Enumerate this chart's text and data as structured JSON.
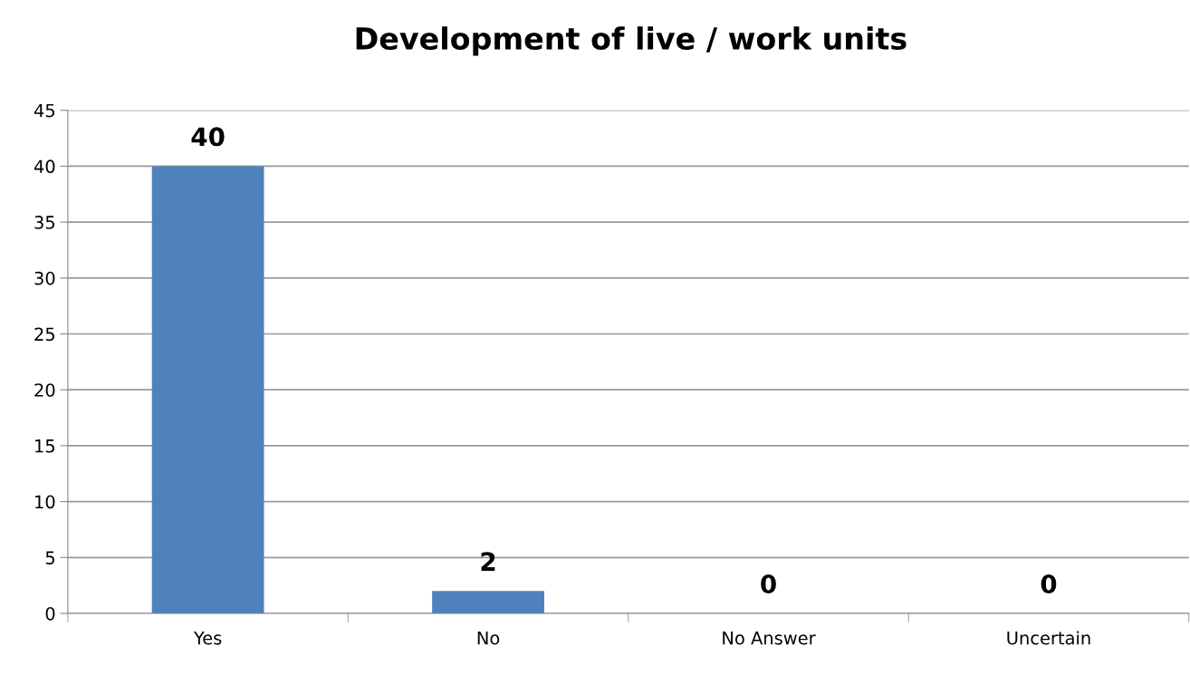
{
  "chart_data": {
    "type": "bar",
    "title": "Development of live / work units",
    "categories": [
      "Yes",
      "No",
      "No Answer",
      "Uncertain"
    ],
    "values": [
      40,
      2,
      0,
      0
    ],
    "color": "#4f81bd",
    "ylim": [
      0,
      45
    ],
    "yticks": [
      0,
      5,
      10,
      15,
      20,
      25,
      30,
      35,
      40,
      45
    ],
    "grid": "y",
    "data_labels": true
  }
}
